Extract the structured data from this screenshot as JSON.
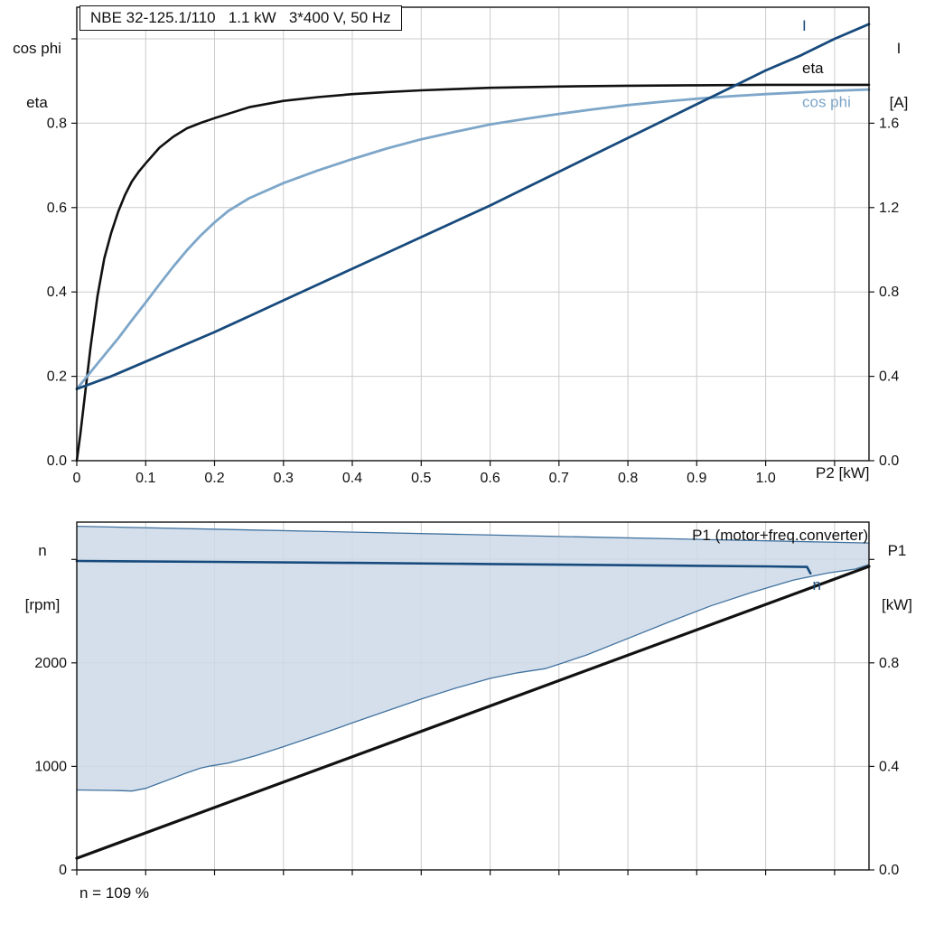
{
  "axis_labels": {
    "top_chart_left_line1": "cos phi",
    "top_chart_left_line2": "eta",
    "top_chart_right_line1": "I",
    "top_chart_right_line2": "[A]",
    "bottom_chart_left_line1": "n",
    "bottom_chart_left_line2": "[rpm]",
    "bottom_chart_right_line1": "P1",
    "bottom_chart_right_line2": "[kW]"
  },
  "footer": {
    "annotation": "n = 109 %"
  },
  "colors": {
    "dark_blue": "#174a7c",
    "light_blue": "#7da6c9",
    "band_fill": "#ccd9e8",
    "band_edge": "#41729f",
    "grid": "#cccccc",
    "black": "#111111"
  },
  "chart_data": [
    {
      "type": "line",
      "title": "NBE 32-125.1/110   1.1 kW   3*400 V, 50 Hz",
      "xlabel": "P2 [kW]",
      "ylabel_left": "cos phi / eta",
      "ylabel_right": "I [A]",
      "xlim": [
        0,
        1.15
      ],
      "ylim_left": [
        0,
        1.075
      ],
      "ylim_right": [
        0,
        2.15
      ],
      "grid_color": "#cccccc",
      "xticks": [
        {
          "v": 0,
          "l": "0"
        },
        {
          "v": 0.1,
          "l": "0.1"
        },
        {
          "v": 0.2,
          "l": "0.2"
        },
        {
          "v": 0.3,
          "l": "0.3"
        },
        {
          "v": 0.4,
          "l": "0.4"
        },
        {
          "v": 0.5,
          "l": "0.5"
        },
        {
          "v": 0.6,
          "l": "0.6"
        },
        {
          "v": 0.7,
          "l": "0.7"
        },
        {
          "v": 0.8,
          "l": "0.8"
        },
        {
          "v": 0.9,
          "l": "0.9"
        },
        {
          "v": 1.0,
          "l": "1.0"
        },
        {
          "v": 1.1,
          "l": ""
        }
      ],
      "yticks_left": [
        {
          "v": 0,
          "l": "0.0"
        },
        {
          "v": 0.2,
          "l": "0.2"
        },
        {
          "v": 0.4,
          "l": "0.4"
        },
        {
          "v": 0.6,
          "l": "0.6"
        },
        {
          "v": 0.8,
          "l": "0.8"
        },
        {
          "v": 1.0,
          "l": ""
        }
      ],
      "yticks_right": [
        {
          "v": 0,
          "l": "0.0"
        },
        {
          "v": 0.4,
          "l": "0.4"
        },
        {
          "v": 0.8,
          "l": "0.8"
        },
        {
          "v": 1.2,
          "l": "1.2"
        },
        {
          "v": 1.6,
          "l": "1.6"
        }
      ],
      "series": [
        {
          "id": "eta",
          "name": "eta",
          "axis": "left",
          "color": "#111111",
          "width": 2.6,
          "points": [
            [
              0,
              0
            ],
            [
              0.005,
              0.06
            ],
            [
              0.01,
              0.13
            ],
            [
              0.02,
              0.27
            ],
            [
              0.03,
              0.39
            ],
            [
              0.04,
              0.48
            ],
            [
              0.05,
              0.54
            ],
            [
              0.06,
              0.59
            ],
            [
              0.07,
              0.63
            ],
            [
              0.08,
              0.662
            ],
            [
              0.09,
              0.685
            ],
            [
              0.1,
              0.705
            ],
            [
              0.12,
              0.742
            ],
            [
              0.14,
              0.768
            ],
            [
              0.16,
              0.788
            ],
            [
              0.18,
              0.801
            ],
            [
              0.2,
              0.812
            ],
            [
              0.25,
              0.838
            ],
            [
              0.3,
              0.853
            ],
            [
              0.35,
              0.862
            ],
            [
              0.4,
              0.869
            ],
            [
              0.45,
              0.874
            ],
            [
              0.5,
              0.878
            ],
            [
              0.55,
              0.881
            ],
            [
              0.6,
              0.884
            ],
            [
              0.7,
              0.887
            ],
            [
              0.8,
              0.889
            ],
            [
              0.9,
              0.89
            ],
            [
              1,
              0.891
            ],
            [
              1.15,
              0.891
            ]
          ]
        },
        {
          "id": "cos-phi",
          "name": "cos phi",
          "axis": "left",
          "color": "#7da6c9",
          "width": 2.8,
          "points": [
            [
              0,
              0.17
            ],
            [
              0.02,
              0.21
            ],
            [
              0.04,
              0.25
            ],
            [
              0.06,
              0.29
            ],
            [
              0.08,
              0.333
            ],
            [
              0.1,
              0.375
            ],
            [
              0.12,
              0.418
            ],
            [
              0.14,
              0.46
            ],
            [
              0.16,
              0.499
            ],
            [
              0.18,
              0.534
            ],
            [
              0.2,
              0.565
            ],
            [
              0.22,
              0.592
            ],
            [
              0.25,
              0.622
            ],
            [
              0.3,
              0.658
            ],
            [
              0.35,
              0.688
            ],
            [
              0.4,
              0.715
            ],
            [
              0.45,
              0.74
            ],
            [
              0.5,
              0.762
            ],
            [
              0.55,
              0.78
            ],
            [
              0.6,
              0.797
            ],
            [
              0.65,
              0.81
            ],
            [
              0.7,
              0.822
            ],
            [
              0.75,
              0.833
            ],
            [
              0.8,
              0.843
            ],
            [
              0.85,
              0.851
            ],
            [
              0.9,
              0.858
            ],
            [
              0.95,
              0.864
            ],
            [
              1,
              0.869
            ],
            [
              1.05,
              0.873
            ],
            [
              1.1,
              0.877
            ],
            [
              1.15,
              0.88
            ]
          ]
        },
        {
          "id": "current",
          "name": "I",
          "axis": "right",
          "color": "#174a7c",
          "width": 2.8,
          "points": [
            [
              0,
              0.34
            ],
            [
              0.05,
              0.4
            ],
            [
              0.1,
              0.47
            ],
            [
              0.15,
              0.54
            ],
            [
              0.2,
              0.61
            ],
            [
              0.25,
              0.685
            ],
            [
              0.3,
              0.76
            ],
            [
              0.35,
              0.835
            ],
            [
              0.4,
              0.91
            ],
            [
              0.45,
              0.985
            ],
            [
              0.5,
              1.06
            ],
            [
              0.55,
              1.135
            ],
            [
              0.6,
              1.21
            ],
            [
              0.65,
              1.29
            ],
            [
              0.7,
              1.37
            ],
            [
              0.75,
              1.45
            ],
            [
              0.8,
              1.53
            ],
            [
              0.85,
              1.61
            ],
            [
              0.9,
              1.69
            ],
            [
              0.95,
              1.77
            ],
            [
              1,
              1.85
            ],
            [
              1.05,
              1.92
            ],
            [
              1.1,
              2.0
            ],
            [
              1.15,
              2.07
            ]
          ]
        }
      ],
      "labels": [
        {
          "text": "I",
          "x": 1.053,
          "y": 1.032,
          "axis": "left",
          "anchor": "start",
          "color": "#174a7c"
        },
        {
          "text": "eta",
          "x": 1.053,
          "y": 0.931,
          "axis": "left",
          "anchor": "start",
          "color": "#111111"
        },
        {
          "text": "cos phi",
          "x": 1.053,
          "y": 0.851,
          "axis": "left",
          "anchor": "start",
          "color": "#7da6c9"
        }
      ]
    },
    {
      "type": "line",
      "title": "",
      "xlabel": "",
      "ylabel_left": "n [rpm]",
      "ylabel_right": "P1 [kW]",
      "xlim": [
        0,
        1.15
      ],
      "ylim_left": [
        0,
        3360
      ],
      "ylim_right": [
        0,
        1.344
      ],
      "grid_color": "#cccccc",
      "xticks": [
        {
          "v": 0,
          "l": ""
        },
        {
          "v": 0.1,
          "l": ""
        },
        {
          "v": 0.2,
          "l": ""
        },
        {
          "v": 0.3,
          "l": ""
        },
        {
          "v": 0.4,
          "l": ""
        },
        {
          "v": 0.5,
          "l": ""
        },
        {
          "v": 0.6,
          "l": ""
        },
        {
          "v": 0.7,
          "l": ""
        },
        {
          "v": 0.8,
          "l": ""
        },
        {
          "v": 0.9,
          "l": ""
        },
        {
          "v": 1.0,
          "l": ""
        },
        {
          "v": 1.1,
          "l": ""
        }
      ],
      "yticks_left": [
        {
          "v": 0,
          "l": "0"
        },
        {
          "v": 1000,
          "l": "1000"
        },
        {
          "v": 2000,
          "l": "2000"
        },
        {
          "v": 3000,
          "l": ""
        }
      ],
      "yticks_right": [
        {
          "v": 0,
          "l": "0.0"
        },
        {
          "v": 0.4,
          "l": "0.4"
        },
        {
          "v": 0.8,
          "l": "0.8"
        },
        {
          "v": 1.2,
          "l": ""
        }
      ],
      "band": {
        "fill": "#ccd9e8",
        "opacity": 0.85,
        "edge_color": "#41729f",
        "upper": [
          [
            0,
            3320
          ],
          [
            1.15,
            3158
          ]
        ],
        "lower": [
          [
            0,
            772
          ],
          [
            0.06,
            766
          ],
          [
            0.08,
            762
          ],
          [
            0.1,
            788
          ],
          [
            0.12,
            838
          ],
          [
            0.14,
            888
          ],
          [
            0.16,
            938
          ],
          [
            0.18,
            984
          ],
          [
            0.195,
            1005
          ],
          [
            0.22,
            1032
          ],
          [
            0.26,
            1104
          ],
          [
            0.3,
            1190
          ],
          [
            0.35,
            1302
          ],
          [
            0.4,
            1420
          ],
          [
            0.45,
            1536
          ],
          [
            0.5,
            1650
          ],
          [
            0.55,
            1756
          ],
          [
            0.6,
            1850
          ],
          [
            0.64,
            1904
          ],
          [
            0.68,
            1944
          ],
          [
            0.71,
            2010
          ],
          [
            0.74,
            2076
          ],
          [
            0.8,
            2236
          ],
          [
            0.86,
            2396
          ],
          [
            0.92,
            2550
          ],
          [
            0.98,
            2682
          ],
          [
            1.04,
            2800
          ],
          [
            1.09,
            2868
          ],
          [
            1.13,
            2906
          ],
          [
            1.15,
            2950
          ]
        ]
      },
      "series": [
        {
          "id": "speed",
          "name": "n",
          "axis": "left",
          "color": "#174a7c",
          "width": 2.6,
          "points": [
            [
              0,
              2985
            ],
            [
              0.2,
              2976
            ],
            [
              0.4,
              2966
            ],
            [
              0.6,
              2955
            ],
            [
              0.8,
              2944
            ],
            [
              1,
              2932
            ],
            [
              1.06,
              2927
            ],
            [
              1.065,
              2865
            ]
          ]
        },
        {
          "id": "p1",
          "name": "P1 (motor+freq.converter)",
          "axis": "right",
          "color": "#111111",
          "width": 3.2,
          "points": [
            [
              0,
              0.045
            ],
            [
              1.15,
              1.173
            ]
          ]
        }
      ],
      "labels": [
        {
          "text": "P1 (motor+freq.converter)",
          "x": 1.149,
          "y": 3238,
          "axis": "left",
          "anchor": "end",
          "color": "#111111"
        },
        {
          "text": "n",
          "x": 1.068,
          "y": 2760,
          "axis": "left",
          "anchor": "start",
          "color": "#174a7c"
        }
      ]
    }
  ]
}
